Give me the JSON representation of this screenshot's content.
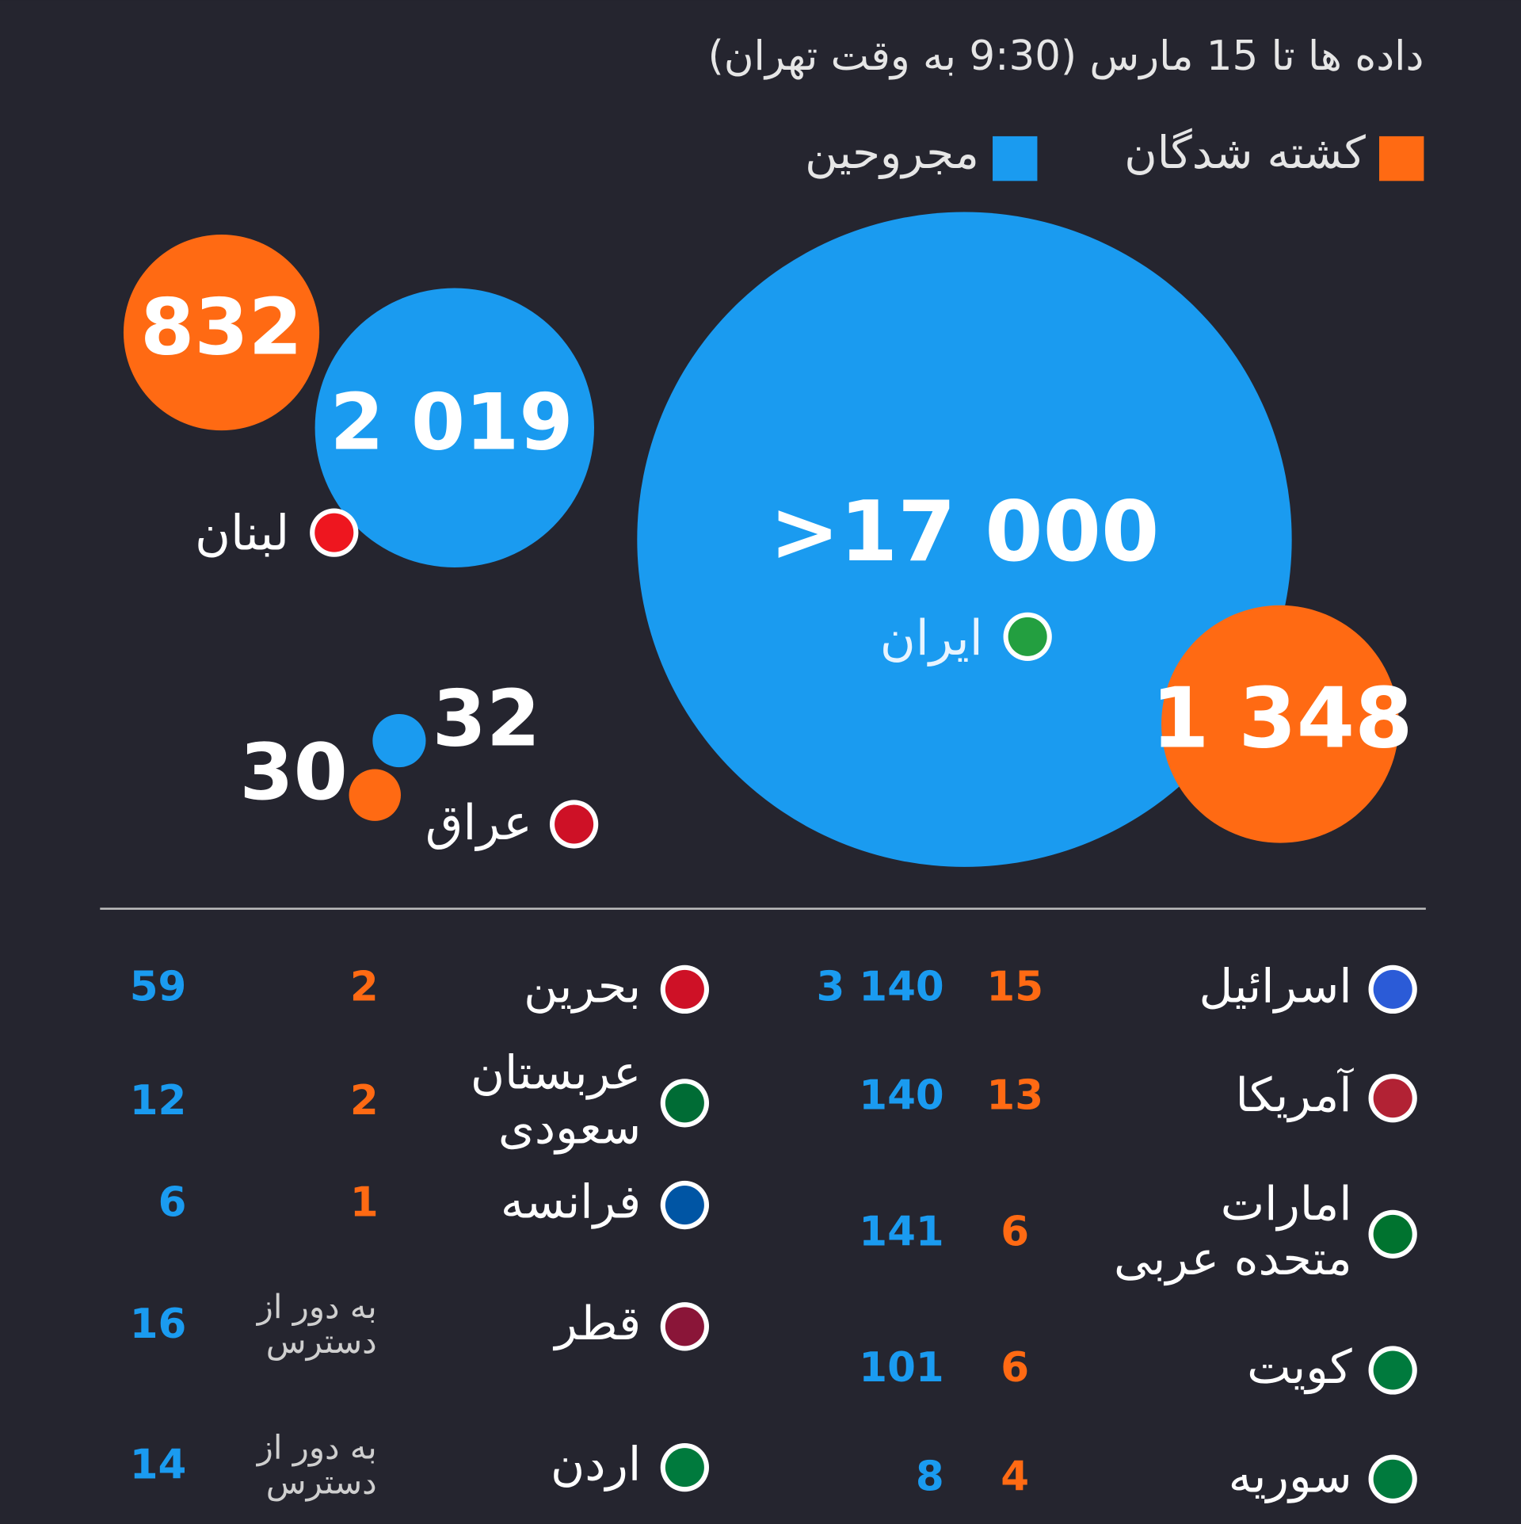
{
  "chart_data": {
    "type": "bubble",
    "subtitle": "داده ها تا 15 مارس (9:30  به وقت تهران)",
    "categories": [
      "ایران",
      "لبنان",
      "عراق"
    ],
    "series": [
      {
        "name": "کشته شدگان",
        "color": "#ff6a13",
        "values": [
          1348,
          832,
          30
        ],
        "value_labels": [
          "1 348",
          "832",
          "30"
        ]
      },
      {
        "name": "مجروحین",
        "color": "#1a9bf0",
        "values": [
          17000,
          2019,
          32
        ],
        "value_labels": [
          ">17 000",
          "2 019",
          "32"
        ]
      }
    ]
  },
  "table": {
    "columns": [
      [
        {
          "country": [
            "اسرائیل"
          ],
          "killed": [
            "15"
          ],
          "injured": "3 140"
        },
        {
          "country": [
            "آمریکا"
          ],
          "killed": [
            "13"
          ],
          "injured": "140"
        },
        {
          "country": [
            "امارات",
            "متحده عربی"
          ],
          "killed": [
            "6"
          ],
          "injured": "141"
        },
        {
          "country": [
            "کویت"
          ],
          "killed": [
            "6"
          ],
          "injured": "101"
        },
        {
          "country": [
            "سوریه"
          ],
          "killed": [
            "4"
          ],
          "injured": "8"
        }
      ],
      [
        {
          "country": [
            "بحرین"
          ],
          "killed": [
            "2"
          ],
          "injured": "59"
        },
        {
          "country": [
            "عربستان",
            "سعودی"
          ],
          "killed": [
            "2"
          ],
          "injured": "12"
        },
        {
          "country": [
            "فرانسه"
          ],
          "killed": [
            "1"
          ],
          "injured": "6"
        },
        {
          "country": [
            "قطر"
          ],
          "killed": [
            "به دور از",
            "دسترس"
          ],
          "injured": "16"
        },
        {
          "country": [
            "اردن"
          ],
          "killed": [
            "به دور از",
            "دسترس"
          ],
          "injured": "14"
        }
      ]
    ]
  }
}
